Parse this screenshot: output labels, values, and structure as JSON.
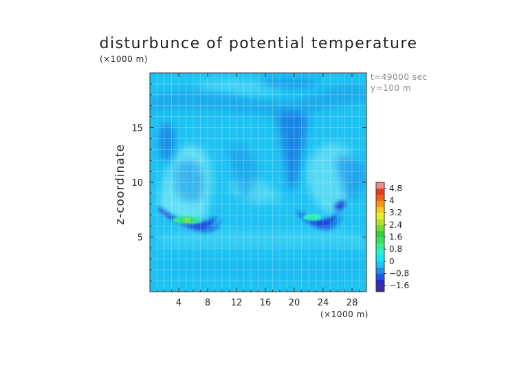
{
  "chart_data": {
    "type": "heatmap",
    "title": "disturbunce of potential temperature",
    "x_unit_label": "(×1000 m)",
    "y_unit_label": "(×1000 m)",
    "ylabel": "z-coordinate",
    "annotations": [
      "t=49000 sec",
      "y=100 m"
    ],
    "xlim": [
      0,
      30
    ],
    "ylim": [
      0,
      20
    ],
    "x_ticks": [
      "4",
      "8",
      "12",
      "16",
      "20",
      "24",
      "28"
    ],
    "y_ticks": [
      "5",
      "10",
      "15"
    ],
    "grid": true,
    "colorbar": {
      "labels": [
        "4.8",
        "4",
        "3.2",
        "2.4",
        "1.6",
        "0.8",
        "0",
        "−0.8",
        "−1.6"
      ],
      "levels": [
        -2.0,
        -1.6,
        -1.2,
        -0.8,
        -0.4,
        0.0,
        0.4,
        0.8,
        1.2,
        1.6,
        2.0,
        2.4,
        2.8,
        3.2,
        3.6,
        4.0,
        4.4,
        4.8,
        5.2
      ],
      "colors": [
        "#3b2f9a",
        "#2a2acc",
        "#1f55ee",
        "#1f8cf0",
        "#1fc0f5",
        "#14e8f7",
        "#22f2d2",
        "#32ee9a",
        "#36e65a",
        "#2fd23a",
        "#6edc2c",
        "#b6e425",
        "#e8f025",
        "#f7c820",
        "#f99418",
        "#f26116",
        "#ea3a1a",
        "#f08c8c"
      ]
    },
    "features": [
      {
        "kind": "warm",
        "x": 5.5,
        "z": 6.6,
        "value": 2.3
      },
      {
        "kind": "warm",
        "x": 22,
        "z": 6.6,
        "value": 1.0
      },
      {
        "kind": "cold",
        "x": 6,
        "z": 6.0,
        "value": -1.4
      },
      {
        "kind": "cold",
        "x": 21,
        "z": 6.0,
        "value": -1.4
      },
      {
        "kind": "cold",
        "x": 19,
        "z": 14.5,
        "value": -0.8
      },
      {
        "kind": "cold",
        "x": 2.8,
        "z": 13.5,
        "value": -0.8
      }
    ]
  }
}
